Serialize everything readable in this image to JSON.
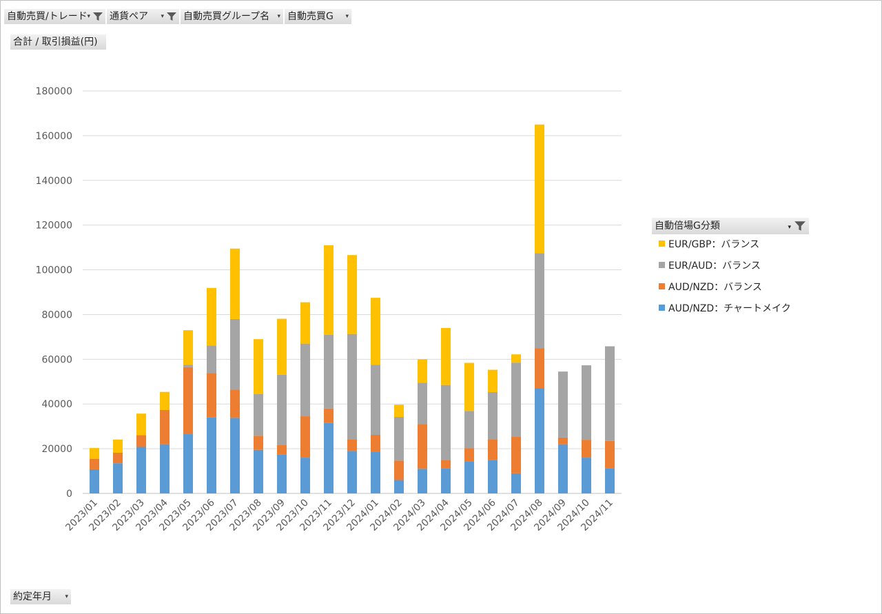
{
  "filters": [
    {
      "label": "自動売買/トレード",
      "filtered": true
    },
    {
      "label": "通貨ペア",
      "filtered": true
    },
    {
      "label": "自動売買グループ名",
      "filtered": false
    },
    {
      "label": "自動売買G",
      "filtered": false
    }
  ],
  "value_field": "合計 / 取引損益(円)",
  "axis_field": "約定年月",
  "legend_field": "自動倍場G分類",
  "colors": {
    "eur_gbp": "#ffc000",
    "eur_aud": "#a5a5a5",
    "aud_nzd_balance": "#ed7d31",
    "aud_nzd_chart": "#5b9bd5"
  },
  "chart_data": {
    "type": "bar",
    "stacked": true,
    "categories": [
      "2023/01",
      "2023/02",
      "2023/03",
      "2023/04",
      "2023/05",
      "2023/06",
      "2023/07",
      "2023/08",
      "2023/09",
      "2023/10",
      "2023/11",
      "2023/12",
      "2024/01",
      "2024/02",
      "2024/03",
      "2024/04",
      "2024/05",
      "2024/06",
      "2024/07",
      "2024/08",
      "2024/09",
      "2024/10",
      "2024/11"
    ],
    "ylim": [
      0,
      180000
    ],
    "yticks": [
      0,
      20000,
      40000,
      60000,
      80000,
      100000,
      120000,
      140000,
      160000,
      180000
    ],
    "grid": true,
    "legend_position": "right",
    "series": [
      {
        "name": "AUD/NZD：チャートメイク",
        "color": "#5b9bd5",
        "values": [
          10800,
          13500,
          20800,
          22000,
          26500,
          34000,
          33800,
          19500,
          17500,
          16000,
          31500,
          19000,
          18500,
          6000,
          11000,
          11300,
          14300,
          15000,
          9000,
          47000,
          22000,
          16000,
          11300
        ]
      },
      {
        "name": "AUD/NZD：バランス",
        "color": "#ed7d31",
        "values": [
          4700,
          4700,
          5300,
          15300,
          30000,
          19800,
          12700,
          6300,
          4300,
          18500,
          6500,
          5300,
          7700,
          8700,
          20000,
          3700,
          5900,
          9300,
          16500,
          18000,
          3000,
          8000,
          12200
        ]
      },
      {
        "name": "EUR/AUD：バランス",
        "color": "#a5a5a5",
        "values": [
          0,
          0,
          0,
          0,
          1000,
          12300,
          31500,
          18700,
          31300,
          32500,
          33000,
          47000,
          31300,
          19500,
          18500,
          33500,
          16700,
          21000,
          33000,
          42500,
          29500,
          33300,
          42300
        ]
      },
      {
        "name": "EUR/GBP：バランス",
        "color": "#ffc000",
        "values": [
          4800,
          5900,
          9600,
          8100,
          15500,
          25800,
          31500,
          24500,
          25000,
          18500,
          40000,
          35300,
          30000,
          5500,
          10500,
          25500,
          21500,
          10000,
          3700,
          57500,
          0,
          0,
          0
        ]
      }
    ]
  }
}
